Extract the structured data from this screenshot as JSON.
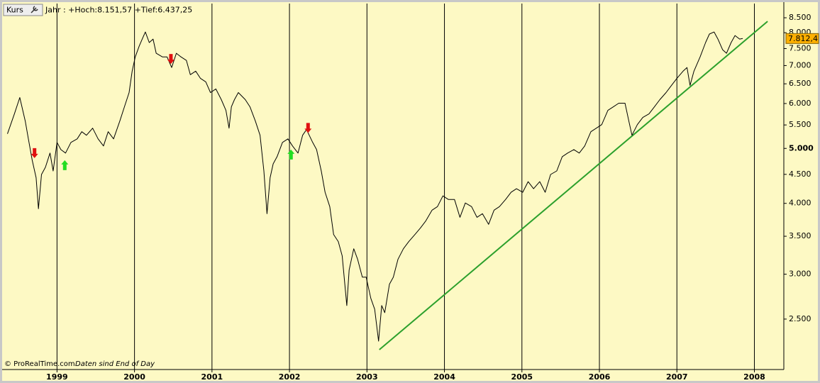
{
  "chart_data": {
    "type": "line",
    "title": "Jahr : +Hoch:8.151,57 +Tief:6.437,25",
    "source": "© ProRealTime.com",
    "note": "Daten sind End of Day",
    "log_scale": true,
    "xlim": [
      1998.31,
      2008.38
    ],
    "xticks": [
      1999,
      2000,
      2001,
      2002,
      2003,
      2004,
      2005,
      2006,
      2007,
      2008
    ],
    "ylim": [
      2037,
      9005
    ],
    "yticks": [
      {
        "value": 2500,
        "label": "2.500"
      },
      {
        "value": 3000,
        "label": "3.000"
      },
      {
        "value": 3500,
        "label": "3.500"
      },
      {
        "value": 4000,
        "label": "4.000"
      },
      {
        "value": 4500,
        "label": "4.500"
      },
      {
        "value": 5000,
        "label": "5.000"
      },
      {
        "value": 5500,
        "label": "5.500"
      },
      {
        "value": 6000,
        "label": "6.000"
      },
      {
        "value": 6500,
        "label": "6.500"
      },
      {
        "value": 7000,
        "label": "7.000"
      },
      {
        "value": 7500,
        "label": "7.500"
      },
      {
        "value": 8000,
        "label": "8.000"
      },
      {
        "value": 8500,
        "label": "8.500"
      }
    ],
    "x": [
      1998.36,
      1998.45,
      1998.52,
      1998.59,
      1998.63,
      1998.68,
      1998.73,
      1998.76,
      1998.8,
      1998.85,
      1998.91,
      1998.95,
      1999.0,
      1999.05,
      1999.11,
      1999.18,
      1999.26,
      1999.32,
      1999.38,
      1999.46,
      1999.53,
      1999.6,
      1999.66,
      1999.73,
      1999.81,
      1999.87,
      1999.93,
      1999.97,
      2000.01,
      2000.06,
      2000.1,
      2000.14,
      2000.19,
      2000.24,
      2000.28,
      2000.36,
      2000.42,
      2000.48,
      2000.54,
      2000.6,
      2000.67,
      2000.72,
      2000.79,
      2000.85,
      2000.92,
      2000.98,
      2001.05,
      2001.12,
      2001.18,
      2001.22,
      2001.25,
      2001.29,
      2001.34,
      2001.43,
      2001.49,
      2001.56,
      2001.62,
      2001.67,
      2001.71,
      2001.75,
      2001.79,
      2001.84,
      2001.91,
      2001.98,
      2002.04,
      2002.11,
      2002.17,
      2002.22,
      2002.3,
      2002.35,
      2002.41,
      2002.46,
      2002.52,
      2002.57,
      2002.63,
      2002.68,
      2002.74,
      2002.77,
      2002.83,
      2002.88,
      2002.94,
      2002.99,
      2003.05,
      2003.1,
      2003.15,
      2003.19,
      2003.23,
      2003.29,
      2003.34,
      2003.4,
      2003.47,
      2003.54,
      2003.62,
      2003.69,
      2003.76,
      2003.84,
      2003.91,
      2003.98,
      2004.05,
      2004.13,
      2004.2,
      2004.27,
      2004.35,
      2004.42,
      2004.49,
      2004.57,
      2004.64,
      2004.71,
      2004.79,
      2004.86,
      2004.93,
      2005.01,
      2005.08,
      2005.15,
      2005.23,
      2005.3,
      2005.37,
      2005.45,
      2005.52,
      2005.59,
      2005.67,
      2005.74,
      2005.81,
      2005.89,
      2005.96,
      2006.03,
      2006.11,
      2006.18,
      2006.25,
      2006.33,
      2006.38,
      2006.42,
      2006.49,
      2006.56,
      2006.64,
      2006.71,
      2006.78,
      2006.86,
      2006.93,
      2007.0,
      2007.08,
      2007.13,
      2007.17,
      2007.22,
      2007.3,
      2007.37,
      2007.42,
      2007.48,
      2007.53,
      2007.59,
      2007.64,
      2007.7,
      2007.75,
      2007.81,
      2007.85
    ],
    "series": [
      {
        "name": "Kurs",
        "color": "#000000",
        "values": [
          5305,
          5752,
          6148,
          5588,
          5198,
          4766,
          4440,
          3914,
          4498,
          4630,
          4906,
          4563,
          5123,
          4977,
          4906,
          5123,
          5198,
          5351,
          5274,
          5429,
          5198,
          5050,
          5351,
          5198,
          5588,
          5921,
          6274,
          6844,
          7252,
          7574,
          7795,
          8023,
          7685,
          7795,
          7358,
          7252,
          7252,
          6944,
          7358,
          7252,
          7148,
          6745,
          6844,
          6648,
          6553,
          6274,
          6366,
          6095,
          5836,
          5429,
          5921,
          6095,
          6274,
          6095,
          5921,
          5588,
          5274,
          4563,
          3836,
          4440,
          4697,
          4835,
          5123,
          5198,
          5050,
          4906,
          5274,
          5398,
          5123,
          4977,
          4563,
          4184,
          3948,
          3525,
          3425,
          3232,
          2641,
          3051,
          3327,
          3186,
          2964,
          2964,
          2719,
          2603,
          2286,
          2641,
          2566,
          2880,
          2964,
          3186,
          3327,
          3425,
          3525,
          3620,
          3726,
          3891,
          3948,
          4123,
          4064,
          4064,
          3780,
          4006,
          3948,
          3780,
          3836,
          3673,
          3891,
          3948,
          4064,
          4184,
          4245,
          4184,
          4369,
          4245,
          4369,
          4184,
          4498,
          4563,
          4835,
          4906,
          4977,
          4906,
          5050,
          5351,
          5429,
          5508,
          5836,
          5921,
          6008,
          6008,
          5588,
          5274,
          5508,
          5670,
          5752,
          5921,
          6095,
          6274,
          6459,
          6648,
          6844,
          6944,
          6459,
          6844,
          7252,
          7685,
          7955,
          8023,
          7795,
          7465,
          7358,
          7685,
          7909,
          7795,
          7812
        ]
      }
    ],
    "last_value": 7812.4,
    "last_value_label": "7.812,4",
    "last_value_color": "#ffb000",
    "trendline": {
      "x": [
        2003.16,
        2008.17
      ],
      "values": [
        2208,
        8378
      ],
      "color": "#2ca02c"
    },
    "sell_signals": {
      "x": [
        1998.71,
        2000.47,
        2002.24
      ],
      "values": [
        4807,
        7046,
        5326
      ],
      "color": "#e01010"
    },
    "buy_signals": {
      "x": [
        1999.1,
        2002.02
      ],
      "values": [
        4766,
        4977
      ],
      "color": "#22dd22"
    }
  }
}
